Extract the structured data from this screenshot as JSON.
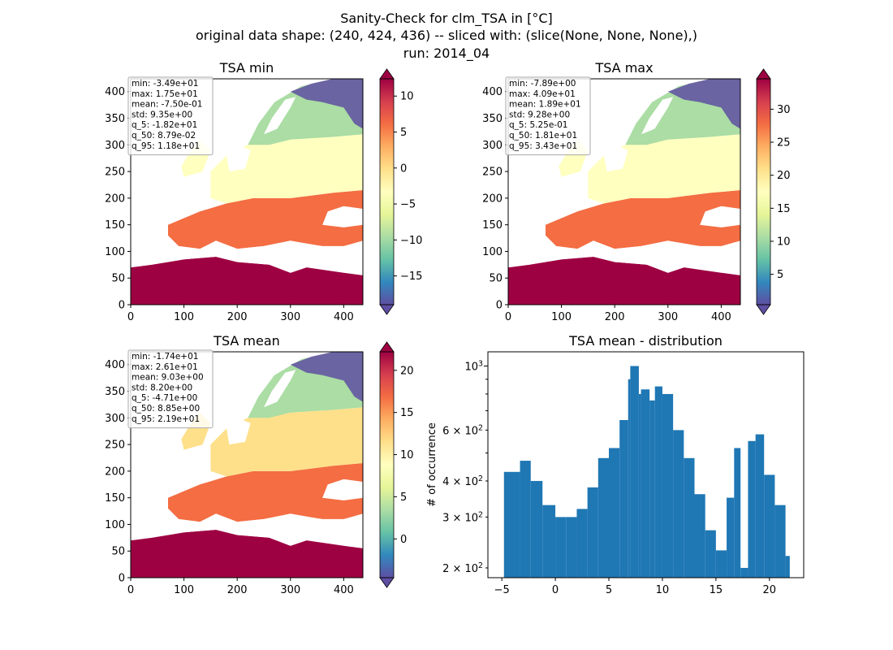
{
  "figure": {
    "title_lines": [
      "Sanity-Check for clm_TSA in [°C]",
      "original data shape: (240, 424, 436) -- sliced with: (slice(None, None, None),)",
      "run: 2014_04"
    ]
  },
  "colors": {
    "histogram_bar": "#1f77b4",
    "colormap": "Spectral_r",
    "colormap_stops": [
      "#5e4fa2",
      "#3288bd",
      "#66c2a5",
      "#abdda4",
      "#e6f598",
      "#ffffbf",
      "#fee08b",
      "#fdae61",
      "#f46d43",
      "#d53e4f",
      "#9e0142"
    ],
    "stats_box_bg": "#ffffff",
    "stats_box_border": "#aaaaaa"
  },
  "chart_data": [
    {
      "type": "heatmap",
      "id": "tsa_min",
      "title": "TSA min",
      "x_ticks": [
        0,
        100,
        200,
        300,
        400
      ],
      "y_ticks": [
        0,
        50,
        100,
        150,
        200,
        250,
        300,
        350,
        400
      ],
      "xlim": [
        0,
        436
      ],
      "ylim": [
        0,
        424
      ],
      "colorbar": {
        "range": [
          -19,
          12.4
        ],
        "ticks": [
          -15,
          -10,
          -5,
          0,
          5,
          10
        ],
        "tick_labels": [
          "−15",
          "−10",
          "−5",
          "0",
          "5",
          "10"
        ],
        "extend": "both"
      },
      "stats": [
        "min: -3.49e+01",
        "max: 1.75e+01",
        "mean: -7.50e-01",
        "std: 9.35e+00",
        "q_5: -1.82e+01",
        "q_50: 8.79e-02",
        "q_95: 1.18e+01"
      ]
    },
    {
      "type": "heatmap",
      "id": "tsa_max",
      "title": "TSA max",
      "x_ticks": [
        0,
        100,
        200,
        300,
        400
      ],
      "y_ticks": [
        0,
        50,
        100,
        150,
        200,
        250,
        300,
        350,
        400
      ],
      "xlim": [
        0,
        436
      ],
      "ylim": [
        0,
        424
      ],
      "colorbar": {
        "range": [
          0.4,
          34.6
        ],
        "ticks": [
          5,
          10,
          15,
          20,
          25,
          30
        ],
        "tick_labels": [
          "5",
          "10",
          "15",
          "20",
          "25",
          "30"
        ],
        "extend": "both"
      },
      "stats": [
        "min: -7.89e+00",
        "max: 4.09e+01",
        "mean: 1.89e+01",
        "std: 9.28e+00",
        "q_5: 5.25e-01",
        "q_50: 1.81e+01",
        "q_95: 3.43e+01"
      ]
    },
    {
      "type": "heatmap",
      "id": "tsa_mean",
      "title": "TSA mean",
      "x_ticks": [
        0,
        100,
        200,
        300,
        400
      ],
      "y_ticks": [
        0,
        50,
        100,
        150,
        200,
        250,
        300,
        350,
        400
      ],
      "xlim": [
        0,
        436
      ],
      "ylim": [
        0,
        424
      ],
      "colorbar": {
        "range": [
          -4.6,
          22.2
        ],
        "ticks": [
          0,
          5,
          10,
          15,
          20
        ],
        "tick_labels": [
          "0",
          "5",
          "10",
          "15",
          "20"
        ],
        "extend": "both"
      },
      "stats": [
        "min: -1.74e+01",
        "max: 2.61e+01",
        "mean: 9.03e+00",
        "std: 8.20e+00",
        "q_5: -4.71e+00",
        "q_50: 8.85e+00",
        "q_95: 2.19e+01"
      ]
    },
    {
      "type": "bar",
      "id": "tsa_mean_dist",
      "title": "TSA mean - distribution",
      "ylabel": "# of occurrence",
      "xlim": [
        -6.3,
        23.2
      ],
      "ylim": [
        185,
        1120
      ],
      "y_scale": "log",
      "x_ticks": [
        -5,
        0,
        5,
        10,
        15,
        20
      ],
      "x_tick_labels": [
        "−5",
        "0",
        "5",
        "10",
        "15",
        "20"
      ],
      "y_major_ticks": [
        1000
      ],
      "y_major_tick_labels": [
        "10^3"
      ],
      "y_minor_ticks": [
        200,
        300,
        400,
        600
      ],
      "y_minor_tick_labels": [
        "2 × 10^2",
        "3 × 10^2",
        "4 × 10^2",
        "6 × 10^2"
      ],
      "bins": [
        [
          -4.8,
          430
        ],
        [
          -3.3,
          470
        ],
        [
          -2.3,
          400
        ],
        [
          -1.2,
          330
        ],
        [
          0.0,
          300
        ],
        [
          1.0,
          300
        ],
        [
          2.0,
          320
        ],
        [
          3.0,
          380
        ],
        [
          4.0,
          480
        ],
        [
          5.0,
          520
        ],
        [
          6.0,
          650
        ],
        [
          6.8,
          900
        ],
        [
          7.0,
          1000
        ],
        [
          7.8,
          800
        ],
        [
          8.0,
          830
        ],
        [
          8.8,
          760
        ],
        [
          9.3,
          850
        ],
        [
          10.0,
          800
        ],
        [
          11.0,
          600
        ],
        [
          12.0,
          480
        ],
        [
          13.0,
          360
        ],
        [
          14.0,
          270
        ],
        [
          15.0,
          230
        ],
        [
          16.0,
          350
        ],
        [
          16.7,
          520
        ],
        [
          17.3,
          200
        ],
        [
          18.0,
          550
        ],
        [
          18.7,
          580
        ],
        [
          19.5,
          420
        ],
        [
          20.5,
          330
        ],
        [
          21.5,
          220
        ],
        [
          21.9,
          185
        ]
      ]
    }
  ]
}
